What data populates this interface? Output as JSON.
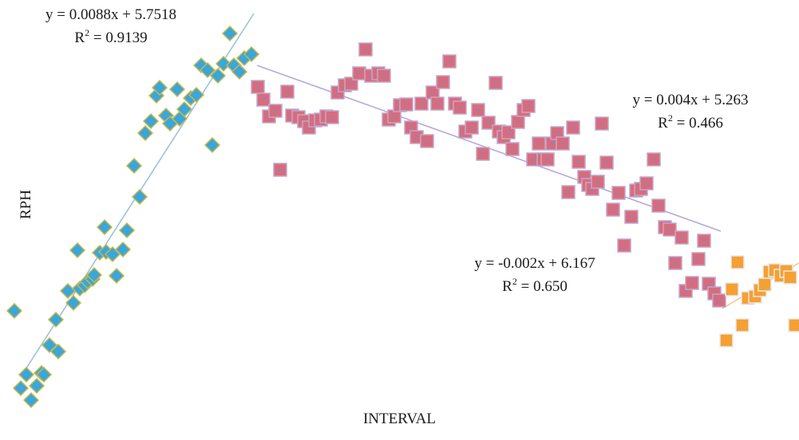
{
  "chart_data": {
    "type": "scatter",
    "xlabel": "INTERVAL",
    "ylabel": "RPH",
    "grid": false,
    "legend": "none",
    "equations": [
      {
        "line": "y = 0.0088x + 5.7518",
        "r2_label": "R",
        "r2_value": " = 0.9139"
      },
      {
        "line": "y = 0.004x + 5.263",
        "r2_label": "R",
        "r2_value": " = 0.466"
      },
      {
        "line": "y = -0.002x + 6.167",
        "r2_label": "R",
        "r2_value": " = 0.650"
      }
    ],
    "series": [
      {
        "marker": "diamond",
        "color": "#3aa6d9",
        "edge": "#c8b84a",
        "points": [
          [
            18,
            390
          ],
          [
            26,
            487
          ],
          [
            33,
            470
          ],
          [
            39,
            502
          ],
          [
            46,
            484
          ],
          [
            52,
            468
          ],
          [
            55,
            470
          ],
          [
            62,
            433
          ],
          [
            70,
            401
          ],
          [
            73,
            441
          ],
          [
            85,
            365
          ],
          [
            92,
            380
          ],
          [
            97,
            314
          ],
          [
            100,
            362
          ],
          [
            106,
            358
          ],
          [
            110,
            353
          ],
          [
            116,
            350
          ],
          [
            118,
            345
          ],
          [
            125,
            317
          ],
          [
            131,
            285
          ],
          [
            133,
            316
          ],
          [
            141,
            319
          ],
          [
            146,
            346
          ],
          [
            154,
            313
          ],
          [
            159,
            289
          ],
          [
            168,
            208
          ],
          [
            175,
            247
          ],
          [
            182,
            167
          ],
          [
            189,
            152
          ],
          [
            196,
            120
          ],
          [
            200,
            110
          ],
          [
            208,
            145
          ],
          [
            213,
            155
          ],
          [
            222,
            112
          ],
          [
            225,
            149
          ],
          [
            231,
            137
          ],
          [
            239,
            123
          ],
          [
            246,
            119
          ],
          [
            252,
            82
          ],
          [
            260,
            88
          ],
          [
            266,
            182
          ],
          [
            273,
            95
          ],
          [
            280,
            80
          ],
          [
            288,
            42
          ],
          [
            293,
            82
          ],
          [
            300,
            90
          ],
          [
            306,
            73
          ],
          [
            315,
            68
          ]
        ]
      },
      {
        "marker": "square",
        "color": "#e06a73",
        "edge": "#b9a9d6",
        "points": [
          [
            323,
            109
          ],
          [
            330,
            125
          ],
          [
            337,
            146
          ],
          [
            345,
            139
          ],
          [
            351,
            213
          ],
          [
            360,
            115
          ],
          [
            366,
            145
          ],
          [
            374,
            147
          ],
          [
            381,
            152
          ],
          [
            387,
            160
          ],
          [
            395,
            151
          ],
          [
            402,
            150
          ],
          [
            409,
            146
          ],
          [
            416,
            147
          ],
          [
            423,
            116
          ],
          [
            432,
            107
          ],
          [
            440,
            105
          ],
          [
            450,
            92
          ],
          [
            458,
            62
          ],
          [
            465,
            95
          ],
          [
            474,
            92
          ],
          [
            481,
            95
          ],
          [
            487,
            150
          ],
          [
            494,
            146
          ],
          [
            501,
            132
          ],
          [
            509,
            131
          ],
          [
            515,
            160
          ],
          [
            522,
            172
          ],
          [
            528,
            130
          ],
          [
            535,
            177
          ],
          [
            542,
            116
          ],
          [
            548,
            130
          ],
          [
            555,
            103
          ],
          [
            563,
            77
          ],
          [
            570,
            130
          ],
          [
            576,
            135
          ],
          [
            583,
            165
          ],
          [
            591,
            160
          ],
          [
            599,
            138
          ],
          [
            605,
            193
          ],
          [
            612,
            154
          ],
          [
            621,
            104
          ],
          [
            625,
            165
          ],
          [
            631,
            172
          ],
          [
            637,
            166
          ],
          [
            642,
            187
          ],
          [
            649,
            153
          ],
          [
            656,
            138
          ],
          [
            662,
            133
          ],
          [
            668,
            200
          ],
          [
            675,
            180
          ],
          [
            681,
            200
          ],
          [
            686,
            200
          ],
          [
            692,
            180
          ],
          [
            698,
            167
          ],
          [
            705,
            180
          ],
          [
            712,
            241
          ],
          [
            718,
            160
          ],
          [
            725,
            203
          ],
          [
            732,
            222
          ],
          [
            737,
            232
          ],
          [
            742,
            237
          ],
          [
            749,
            228
          ],
          [
            754,
            155
          ],
          [
            760,
            204
          ],
          [
            768,
            263
          ],
          [
            775,
            242
          ],
          [
            782,
            308
          ],
          [
            791,
            272
          ],
          [
            797,
            239
          ],
          [
            803,
            237
          ],
          [
            810,
            230
          ],
          [
            819,
            200
          ],
          [
            825,
            258
          ],
          [
            833,
            285
          ],
          [
            839,
            288
          ],
          [
            846,
            330
          ],
          [
            854,
            298
          ],
          [
            859,
            365
          ],
          [
            867,
            355
          ],
          [
            875,
            325
          ],
          [
            882,
            302
          ],
          [
            888,
            356
          ],
          [
            895,
            368
          ],
          [
            901,
            377
          ]
        ]
      },
      {
        "marker": "square",
        "color": "#f5a033",
        "edge": "#e8e8e8",
        "points": [
          [
            910,
            427
          ],
          [
            917,
            363
          ],
          [
            924,
            329
          ],
          [
            930,
            408
          ],
          [
            937,
            374
          ],
          [
            946,
            372
          ],
          [
            952,
            364
          ],
          [
            958,
            357
          ],
          [
            964,
            341
          ],
          [
            971,
            339
          ],
          [
            978,
            346
          ],
          [
            985,
            340
          ],
          [
            990,
            348
          ],
          [
            996,
            408
          ]
        ]
      }
    ],
    "trendlines": [
      {
        "color": "#9cc3d9",
        "from": [
          31,
          465
        ],
        "to": [
          318,
          17
        ]
      },
      {
        "color": "#b7a9d8",
        "from": [
          322,
          82
        ],
        "to": [
          903,
          290
        ]
      },
      {
        "color": "#f3c59c",
        "from": [
          905,
          387
        ],
        "to": [
          1001,
          330
        ]
      }
    ]
  }
}
